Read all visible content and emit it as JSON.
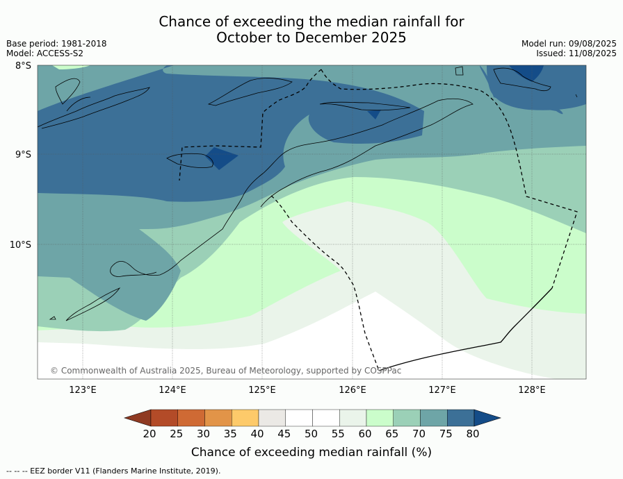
{
  "title": {
    "line1": "Chance of exceeding the median rainfall for",
    "line2": "October to December 2025"
  },
  "meta": {
    "base_period": "Base period: 1981-2018",
    "model": "Model: ACCESS-S2",
    "model_run": "Model run: 09/08/2025",
    "issued": "Issued: 11/08/2025"
  },
  "map": {
    "lat_labels": [
      "8°S",
      "9°S",
      "10°S"
    ],
    "lon_labels": [
      "123°E",
      "124°E",
      "125°E",
      "126°E",
      "127°E",
      "128°E"
    ],
    "copyright": "© Commonwealth of Australia 2025, Bureau of Meteorology, supported by COSPPac"
  },
  "colorbar": {
    "label": "Chance of exceeding median rainfall (%)",
    "ticks": [
      "20",
      "25",
      "30",
      "35",
      "40",
      "45",
      "50",
      "55",
      "60",
      "65",
      "70",
      "75",
      "80"
    ],
    "colors": [
      "#8f3a22",
      "#b34b28",
      "#cf6a34",
      "#e29448",
      "#fdca6a",
      "#ebe9e5",
      "#ffffff",
      "#ffffff",
      "#eaf4ea",
      "#cbfdcb",
      "#9bd0b7",
      "#6ea5a7",
      "#3c7097",
      "#144c88"
    ]
  },
  "footer": "--  --  -- EEZ border V11 (Flanders Marine Institute, 2019)."
}
